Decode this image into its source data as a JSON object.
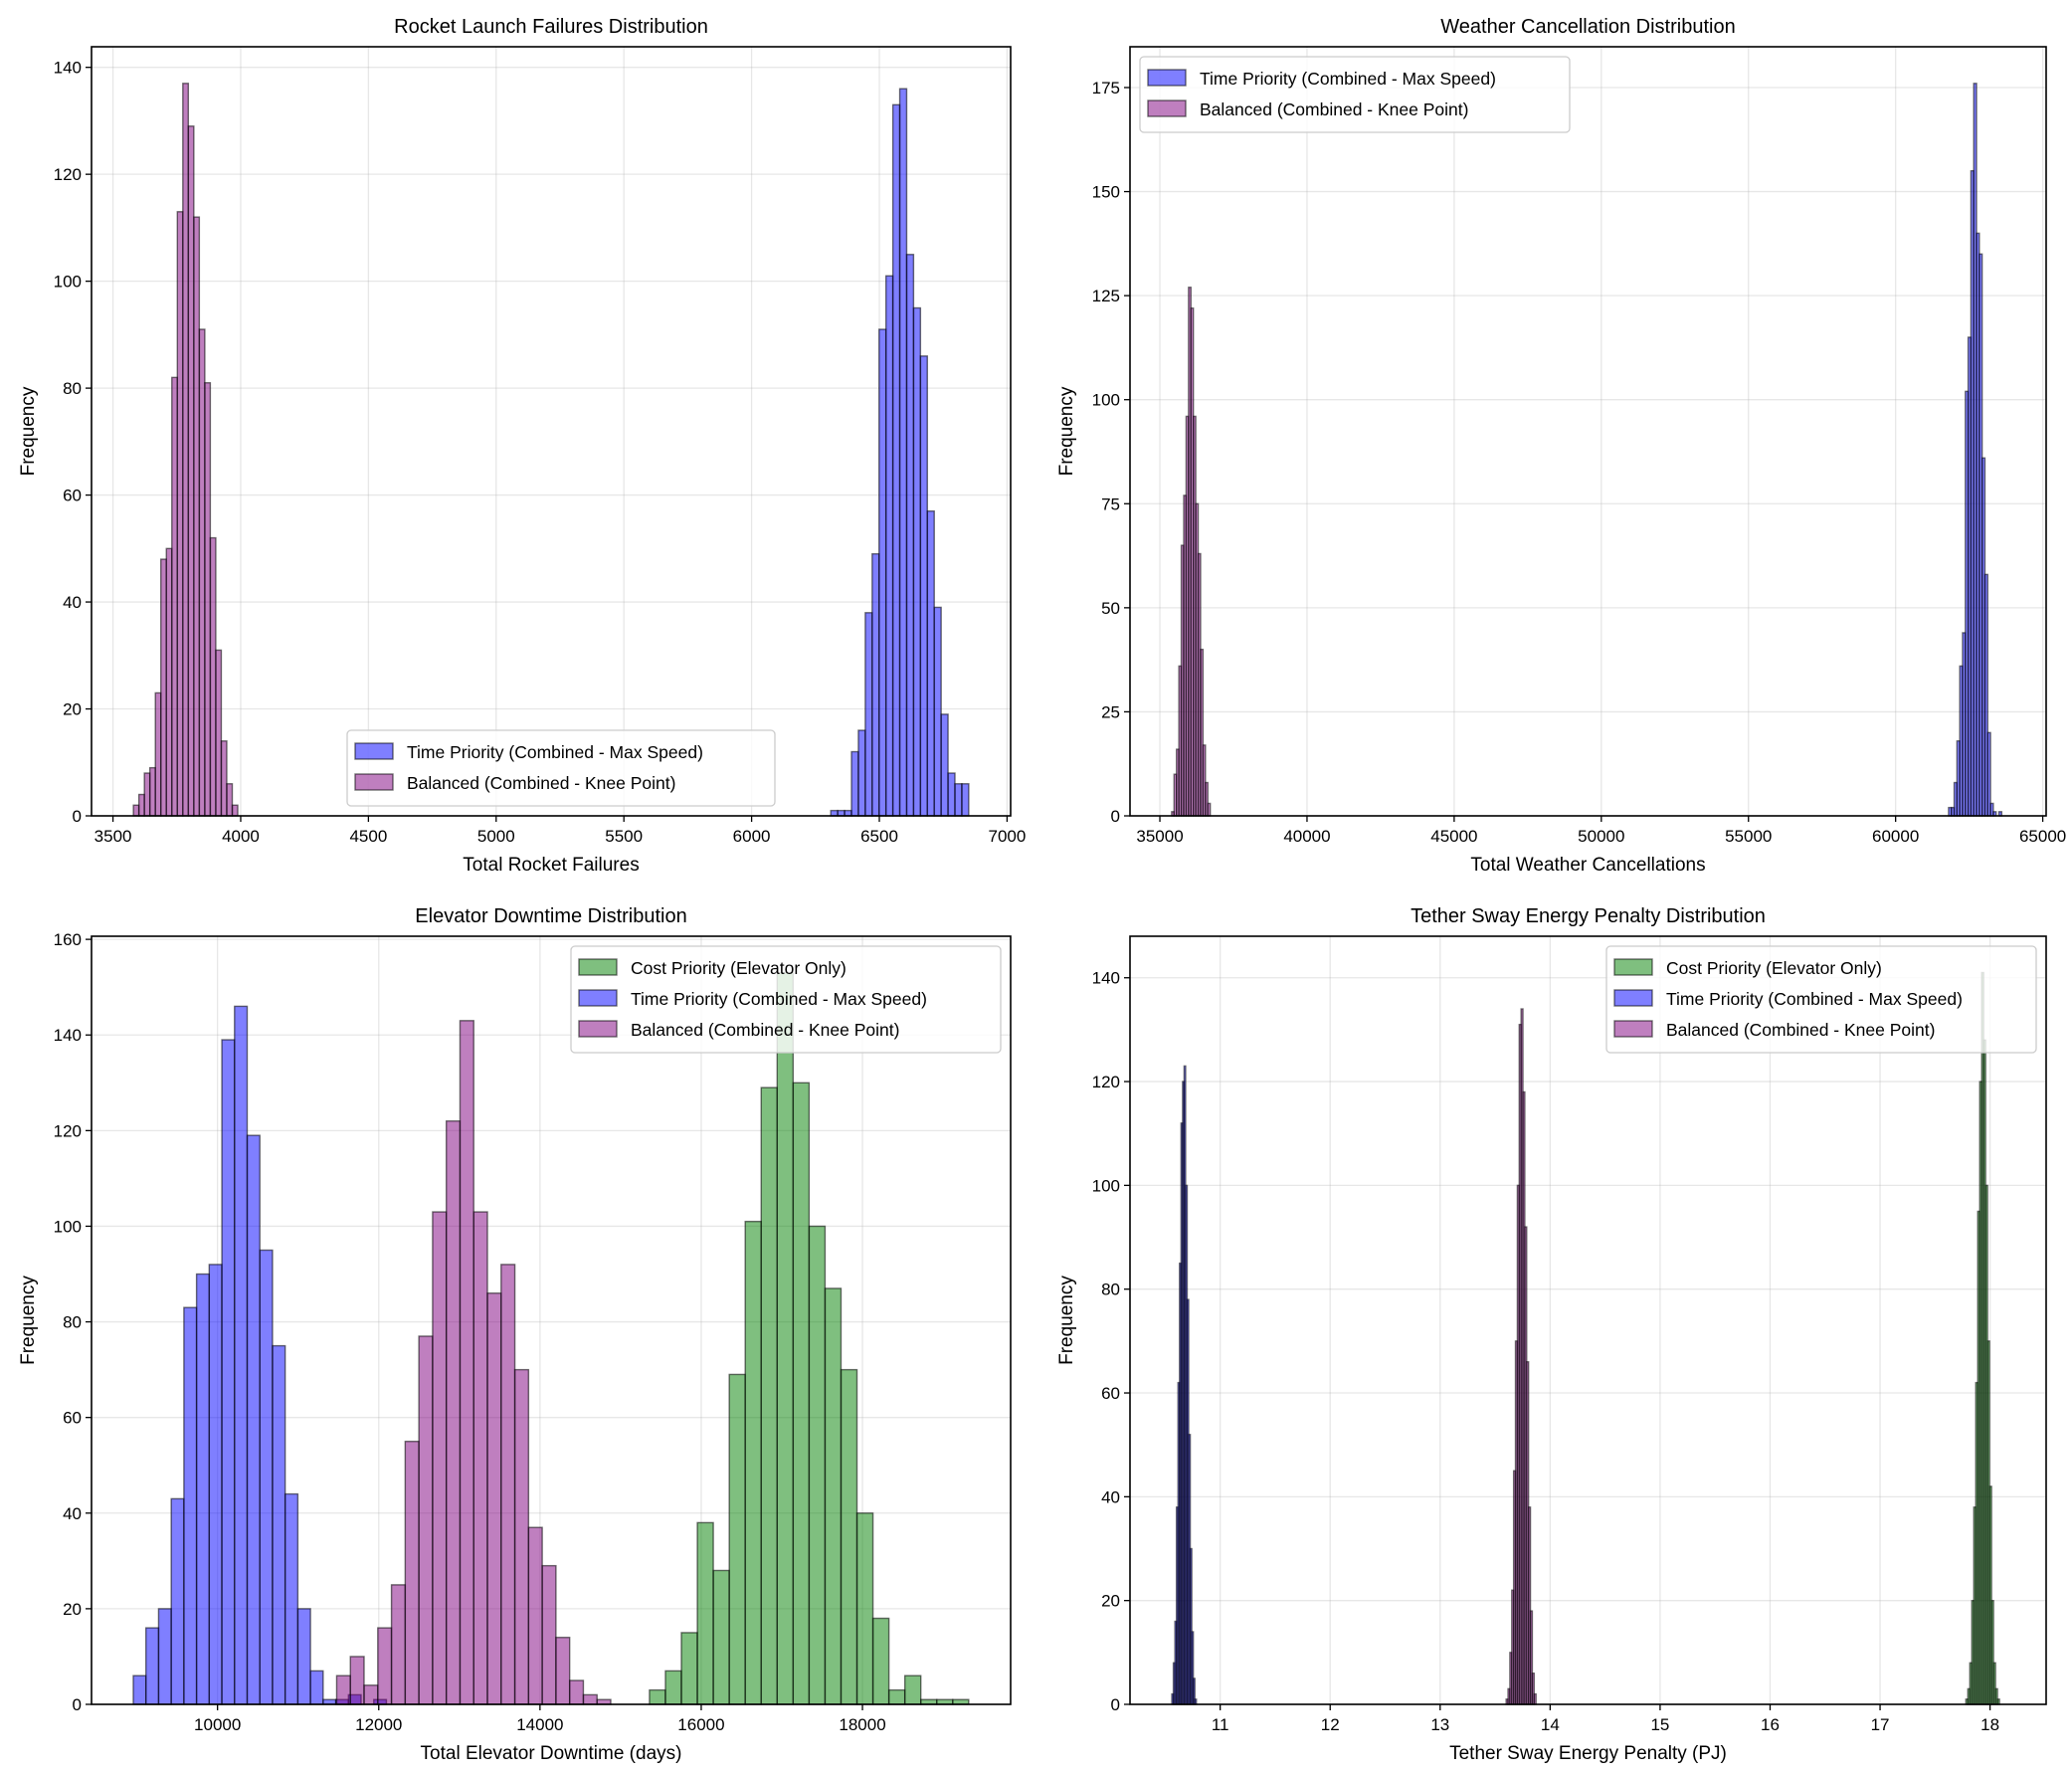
{
  "colors": {
    "Cost Priority (Elevator Only)": "#008000",
    "Time Priority (Combined - Max Speed)": "#0000ff",
    "Balanced (Combined - Knee Point)": "#800080"
  },
  "chart_data": [
    {
      "type": "bar",
      "title": "Rocket Launch Failures Distribution",
      "xlabel": "Total Rocket Failures",
      "ylabel": "Frequency",
      "xlim": [
        3416,
        7014
      ],
      "ylim": [
        0,
        143.85
      ],
      "xticks": [
        3500,
        4000,
        4500,
        5000,
        5500,
        6000,
        6500,
        7000
      ],
      "yticks": [
        0,
        20,
        40,
        60,
        80,
        100,
        120,
        140
      ],
      "grid": true,
      "legend_position": "lower center",
      "series": [
        {
          "name": "Time Priority (Combined - Max Speed)",
          "bin_start": 6310,
          "bin_width": 27,
          "counts": [
            1,
            1,
            1,
            12,
            16,
            38,
            49,
            91,
            101,
            133,
            136,
            105,
            95,
            86,
            57,
            39,
            19,
            8,
            6,
            6
          ]
        },
        {
          "name": "Balanced (Combined - Knee Point)",
          "bin_start": 3580,
          "bin_width": 21.5,
          "counts": [
            2,
            4,
            8,
            9,
            23,
            48,
            50,
            82,
            113,
            137,
            129,
            112,
            91,
            81,
            52,
            31,
            14,
            6,
            2
          ]
        }
      ]
    },
    {
      "type": "bar",
      "title": "Weather Cancellation Distribution",
      "xlabel": "Total Weather Cancellations",
      "ylabel": "Frequency",
      "xlim": [
        33985,
        65115
      ],
      "ylim": [
        0,
        184.8
      ],
      "xticks": [
        35000,
        40000,
        45000,
        50000,
        55000,
        60000,
        65000
      ],
      "yticks": [
        0,
        25,
        50,
        75,
        100,
        125,
        150,
        175
      ],
      "grid": true,
      "legend_position": "upper left",
      "series": [
        {
          "name": "Time Priority (Combined - Max Speed)",
          "bin_start": 61800,
          "bin_width": 95,
          "counts": [
            2,
            2,
            8,
            18,
            36,
            44,
            102,
            115,
            155,
            176,
            140,
            135,
            86,
            58,
            20,
            3,
            1,
            0,
            1
          ]
        },
        {
          "name": "Balanced (Combined - Knee Point)",
          "bin_start": 35400,
          "bin_width": 82,
          "counts": [
            1,
            10,
            16,
            36,
            65,
            77,
            96,
            127,
            122,
            96,
            75,
            63,
            40,
            17,
            8,
            3
          ]
        }
      ]
    },
    {
      "type": "bar",
      "title": "Elevator Downtime Distribution",
      "xlabel": "Total Elevator Downtime (days)",
      "ylabel": "Frequency",
      "xlim": [
        8437,
        19838
      ],
      "ylim": [
        0,
        160.65
      ],
      "xticks": [
        10000,
        12000,
        14000,
        16000,
        18000
      ],
      "yticks": [
        0,
        20,
        40,
        60,
        80,
        100,
        120,
        140,
        160
      ],
      "grid": true,
      "legend_position": "upper right",
      "series": [
        {
          "name": "Cost Priority (Elevator Only)",
          "bin_start": 15358,
          "bin_width": 198,
          "counts": [
            3,
            7,
            15,
            38,
            28,
            69,
            101,
            129,
            153,
            130,
            100,
            87,
            70,
            40,
            18,
            3,
            6,
            1,
            1,
            1
          ]
        },
        {
          "name": "Time Priority (Combined - Max Speed)",
          "bin_start": 8955,
          "bin_width": 157,
          "counts": [
            6,
            16,
            20,
            43,
            83,
            90,
            92,
            139,
            146,
            119,
            95,
            75,
            44,
            20,
            7,
            1,
            1,
            2,
            0,
            1
          ]
        },
        {
          "name": "Balanced (Combined - Knee Point)",
          "bin_start": 11478,
          "bin_width": 170,
          "counts": [
            6,
            10,
            4,
            16,
            25,
            55,
            77,
            103,
            122,
            143,
            103,
            86,
            92,
            70,
            37,
            29,
            14,
            5,
            2,
            1
          ]
        }
      ]
    },
    {
      "type": "bar",
      "title": "Tether Sway Energy Penalty Distribution",
      "xlabel": "Tether Sway Energy Penalty (PJ)",
      "ylabel": "Frequency",
      "xlim": [
        10.18,
        18.51
      ],
      "ylim": [
        0,
        148
      ],
      "xticks": [
        11,
        12,
        13,
        14,
        15,
        16,
        17,
        18
      ],
      "yticks": [
        0,
        20,
        40,
        60,
        80,
        100,
        120,
        140
      ],
      "grid": true,
      "legend_position": "upper right",
      "series": [
        {
          "name": "Cost Priority (Elevator Only)",
          "bin_start": 17.78,
          "bin_width": 0.018,
          "counts": [
            1,
            3,
            8,
            20,
            38,
            62,
            95,
            120,
            141,
            128,
            100,
            70,
            42,
            20,
            8,
            3,
            1
          ]
        },
        {
          "name": "Time Priority (Combined - Max Speed)",
          "bin_start": 10.56,
          "bin_width": 0.014,
          "counts": [
            2,
            8,
            16,
            38,
            62,
            85,
            112,
            120,
            123,
            100,
            78,
            52,
            30,
            14,
            5,
            1
          ]
        },
        {
          "name": "Balanced (Combined - Knee Point)",
          "bin_start": 13.6,
          "bin_width": 0.017,
          "counts": [
            1,
            3,
            10,
            22,
            45,
            70,
            100,
            131,
            134,
            118,
            92,
            66,
            38,
            18,
            6,
            2
          ]
        }
      ]
    }
  ]
}
